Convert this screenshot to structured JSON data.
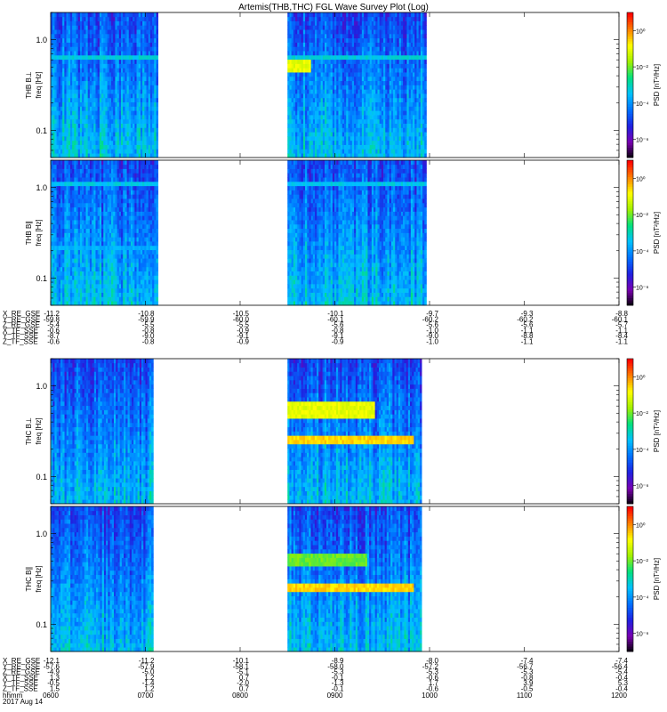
{
  "title": "Artemis(THB,THC) FGL Wave Survey Plot (Log)",
  "chart_data": [
    {
      "type": "heatmap",
      "probe": "THB",
      "component": "B⊥",
      "ylabel_top": "THB B⊥",
      "ylabel_bottom": "freq [Hz]",
      "yscale": "log",
      "ylim": [
        0.05,
        2.0
      ],
      "yticks": [
        {
          "v": 1.0,
          "label": "1.0"
        },
        {
          "v": 0.1,
          "label": "0.1"
        }
      ],
      "time_range": [
        "06:00",
        "12:00"
      ],
      "data_intervals": [
        [
          "06:00",
          "07:08"
        ],
        [
          "08:30",
          "09:58"
        ]
      ],
      "colorbar": {
        "label": "PSD [nT²/Hz]",
        "scale": "log",
        "range": [
          1e-07,
          10
        ],
        "ticks": [
          {
            "exp": 0,
            "label": "10⁰"
          },
          {
            "exp": -2,
            "label": "10⁻²"
          },
          {
            "exp": -4,
            "label": "10⁻⁴"
          },
          {
            "exp": -6,
            "label": "10⁻⁶"
          }
        ]
      },
      "features": [
        {
          "time": [
            "08:30",
            "08:45"
          ],
          "freq": [
            0.45,
            0.7
          ],
          "log10_psd": -1.0
        },
        {
          "time": [
            "06:00",
            "09:58"
          ],
          "freq": [
            0.6,
            0.65
          ],
          "log10_psd": -3.2
        }
      ]
    },
    {
      "type": "heatmap",
      "probe": "THB",
      "component": "B∥",
      "ylabel_top": "THB B∥",
      "ylabel_bottom": "freq [Hz]",
      "yscale": "log",
      "ylim": [
        0.05,
        2.0
      ],
      "yticks": [
        {
          "v": 1.0,
          "label": "1.0"
        },
        {
          "v": 0.1,
          "label": "0.1"
        }
      ],
      "time_range": [
        "06:00",
        "12:00"
      ],
      "data_intervals": [
        [
          "06:00",
          "07:08"
        ],
        [
          "08:30",
          "09:58"
        ]
      ],
      "colorbar": {
        "label": "PSD [nT²/Hz]",
        "scale": "log",
        "range": [
          1e-07,
          10
        ],
        "ticks": [
          {
            "exp": 0,
            "label": "10⁰"
          },
          {
            "exp": -2,
            "label": "10⁻²"
          },
          {
            "exp": -4,
            "label": "10⁻⁴"
          },
          {
            "exp": -6,
            "label": "10⁻⁶"
          }
        ]
      },
      "features": [
        {
          "time": [
            "06:00",
            "09:58"
          ],
          "freq": [
            1.1,
            1.2
          ],
          "log10_psd": -3.3
        },
        {
          "time": [
            "06:00",
            "07:08"
          ],
          "freq": [
            0.2,
            0.23
          ],
          "log10_psd": -3.6
        }
      ]
    },
    {
      "type": "heatmap",
      "probe": "THC",
      "component": "B⊥",
      "ylabel_top": "THC B⊥",
      "ylabel_bottom": "freq [Hz]",
      "yscale": "log",
      "ylim": [
        0.05,
        2.0
      ],
      "yticks": [
        {
          "v": 1.0,
          "label": "1.0"
        },
        {
          "v": 0.1,
          "label": "0.1"
        }
      ],
      "time_range": [
        "06:00",
        "12:00"
      ],
      "data_intervals": [
        [
          "06:00",
          "07:05"
        ],
        [
          "08:30",
          "09:55"
        ]
      ],
      "colorbar": {
        "label": "PSD [nT²/Hz]",
        "scale": "log",
        "range": [
          1e-07,
          10
        ],
        "ticks": [
          {
            "exp": 0,
            "label": "10⁰"
          },
          {
            "exp": -2,
            "label": "10⁻²"
          },
          {
            "exp": -4,
            "label": "10⁻⁴"
          },
          {
            "exp": -6,
            "label": "10⁻⁶"
          }
        ]
      },
      "features": [
        {
          "time": [
            "08:30",
            "09:25"
          ],
          "freq": [
            0.45,
            0.7
          ],
          "log10_psd": -1.0
        },
        {
          "time": [
            "08:30",
            "09:50"
          ],
          "freq": [
            0.24,
            0.28
          ],
          "log10_psd": -0.5
        }
      ]
    },
    {
      "type": "heatmap",
      "probe": "THC",
      "component": "B∥",
      "ylabel_top": "THC B∥",
      "ylabel_bottom": "freq [Hz]",
      "yscale": "log",
      "ylim": [
        0.05,
        2.0
      ],
      "yticks": [
        {
          "v": 1.0,
          "label": "1.0"
        },
        {
          "v": 0.1,
          "label": "0.1"
        }
      ],
      "time_range": [
        "06:00",
        "12:00"
      ],
      "data_intervals": [
        [
          "06:00",
          "07:05"
        ],
        [
          "08:30",
          "09:55"
        ]
      ],
      "colorbar": {
        "label": "PSD [nT²/Hz]",
        "scale": "log",
        "range": [
          1e-07,
          10
        ],
        "ticks": [
          {
            "exp": 0,
            "label": "10⁰"
          },
          {
            "exp": -2,
            "label": "10⁻²"
          },
          {
            "exp": -4,
            "label": "10⁻⁴"
          },
          {
            "exp": -6,
            "label": "10⁻⁶"
          }
        ]
      },
      "features": [
        {
          "time": [
            "08:30",
            "09:50"
          ],
          "freq": [
            0.24,
            0.28
          ],
          "log10_psd": -0.5
        },
        {
          "time": [
            "08:30",
            "09:20"
          ],
          "freq": [
            0.45,
            0.6
          ],
          "log10_psd": -2.0
        }
      ]
    }
  ],
  "ephemeris": [
    {
      "probe": "THB",
      "rows": [
        {
          "label": "X_RE_GSE",
          "values": [
            "-11.2",
            "-10.8",
            "-10.5",
            "-10.1",
            "-9.7",
            "-9.3",
            "-8.8"
          ]
        },
        {
          "label": "Y_RE_GSE",
          "values": [
            "-59.8",
            "-59.9",
            "-60.0",
            "-60.1",
            "-60.2",
            "-60.2",
            "-60.1"
          ]
        },
        {
          "label": "Z_RE_GSE",
          "values": [
            "-5.4",
            "-5.5",
            "-5.5",
            "-5.6",
            "-5.6",
            "-5.6",
            "-5.7"
          ]
        },
        {
          "label": "X_TF_SSE",
          "values": [
            "-0.6",
            "-0.8",
            "-0.9",
            "-0.8",
            "-1.0",
            "-1.1",
            "-1.1"
          ]
        },
        {
          "label": "Y_TF_SSE",
          "values": [
            "-8.7",
            "-9.0",
            "-9.1",
            "-9.1",
            "-9.0",
            "-8.8",
            "-8.4"
          ]
        },
        {
          "label": "Z_TF_SSE",
          "values": [
            "-0.6",
            "-0.8",
            "-0.9",
            "-0.9",
            "-1.0",
            "-1.1",
            "-1.1"
          ]
        }
      ]
    },
    {
      "probe": "THC",
      "rows": [
        {
          "label": "X_RE_GSE",
          "values": [
            "-12.1",
            "-11.2",
            "-10.1",
            "-8.9",
            "-8.0",
            "-7.4",
            "-7.4"
          ]
        },
        {
          "label": "Y_RE_GSE",
          "values": [
            "-57.6",
            "-57.9",
            "-58.1",
            "-58.0",
            "-57.2",
            "-56.7",
            "-56.4"
          ]
        },
        {
          "label": "Z_RE_GSE",
          "values": [
            "-4.9",
            "-5.0",
            "-5.1",
            "-5.3",
            "-5.3",
            "-5.3",
            "-5.4"
          ]
        },
        {
          "label": "X_TF_SSE",
          "values": [
            "1.3",
            "1.2",
            "0.7",
            "-0.1",
            "-0.6",
            "-0.8",
            "-0.4"
          ]
        },
        {
          "label": "Y_TF_SSE",
          "values": [
            "-0.5",
            "-1.4",
            "-2.0",
            "-1.3",
            "1.7",
            "3.9",
            "5.3"
          ]
        },
        {
          "label": "Z_TF_SSE",
          "values": [
            "1.5",
            "1.2",
            "0.7",
            "-0.1",
            "-0.6",
            "-0.5",
            "-0.4"
          ]
        }
      ],
      "time_label": "hhmm",
      "times": [
        "0600",
        "0700",
        "0800",
        "0900",
        "1000",
        "1100",
        "1200"
      ],
      "date": "2017 Aug 14"
    }
  ],
  "colors": {
    "background": "#ffffff",
    "axis": "#000000",
    "colormap": [
      "#000000",
      "#7a00b0",
      "#2020e0",
      "#0070ff",
      "#00c0ff",
      "#00e080",
      "#a0f000",
      "#ffff00",
      "#ff8000",
      "#ff0000"
    ]
  }
}
